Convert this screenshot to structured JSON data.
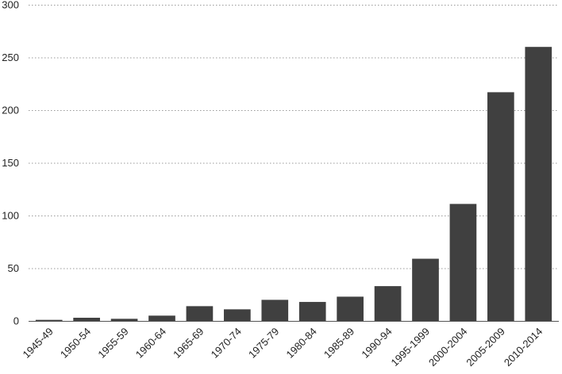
{
  "chart_data": {
    "type": "bar",
    "title": "",
    "xlabel": "",
    "ylabel": "",
    "categories": [
      "1945-49",
      "1950-54",
      "1955-59",
      "1960-64",
      "1965-69",
      "1970-74",
      "1975-79",
      "1980-84",
      "1985-89",
      "1990-94",
      "1995-1999",
      "2000-2004",
      "2005-2009",
      "2010-2014"
    ],
    "values": [
      1,
      3,
      2,
      5,
      14,
      11,
      20,
      18,
      23,
      33,
      59,
      111,
      217,
      260
    ],
    "ylim": [
      0,
      300
    ],
    "yticks": [
      0,
      50,
      100,
      150,
      200,
      250,
      300
    ],
    "grid": true,
    "legend": "none",
    "bar_color": "#404040",
    "grid_color": "#9a9a9a",
    "label_rotation": "-45"
  }
}
